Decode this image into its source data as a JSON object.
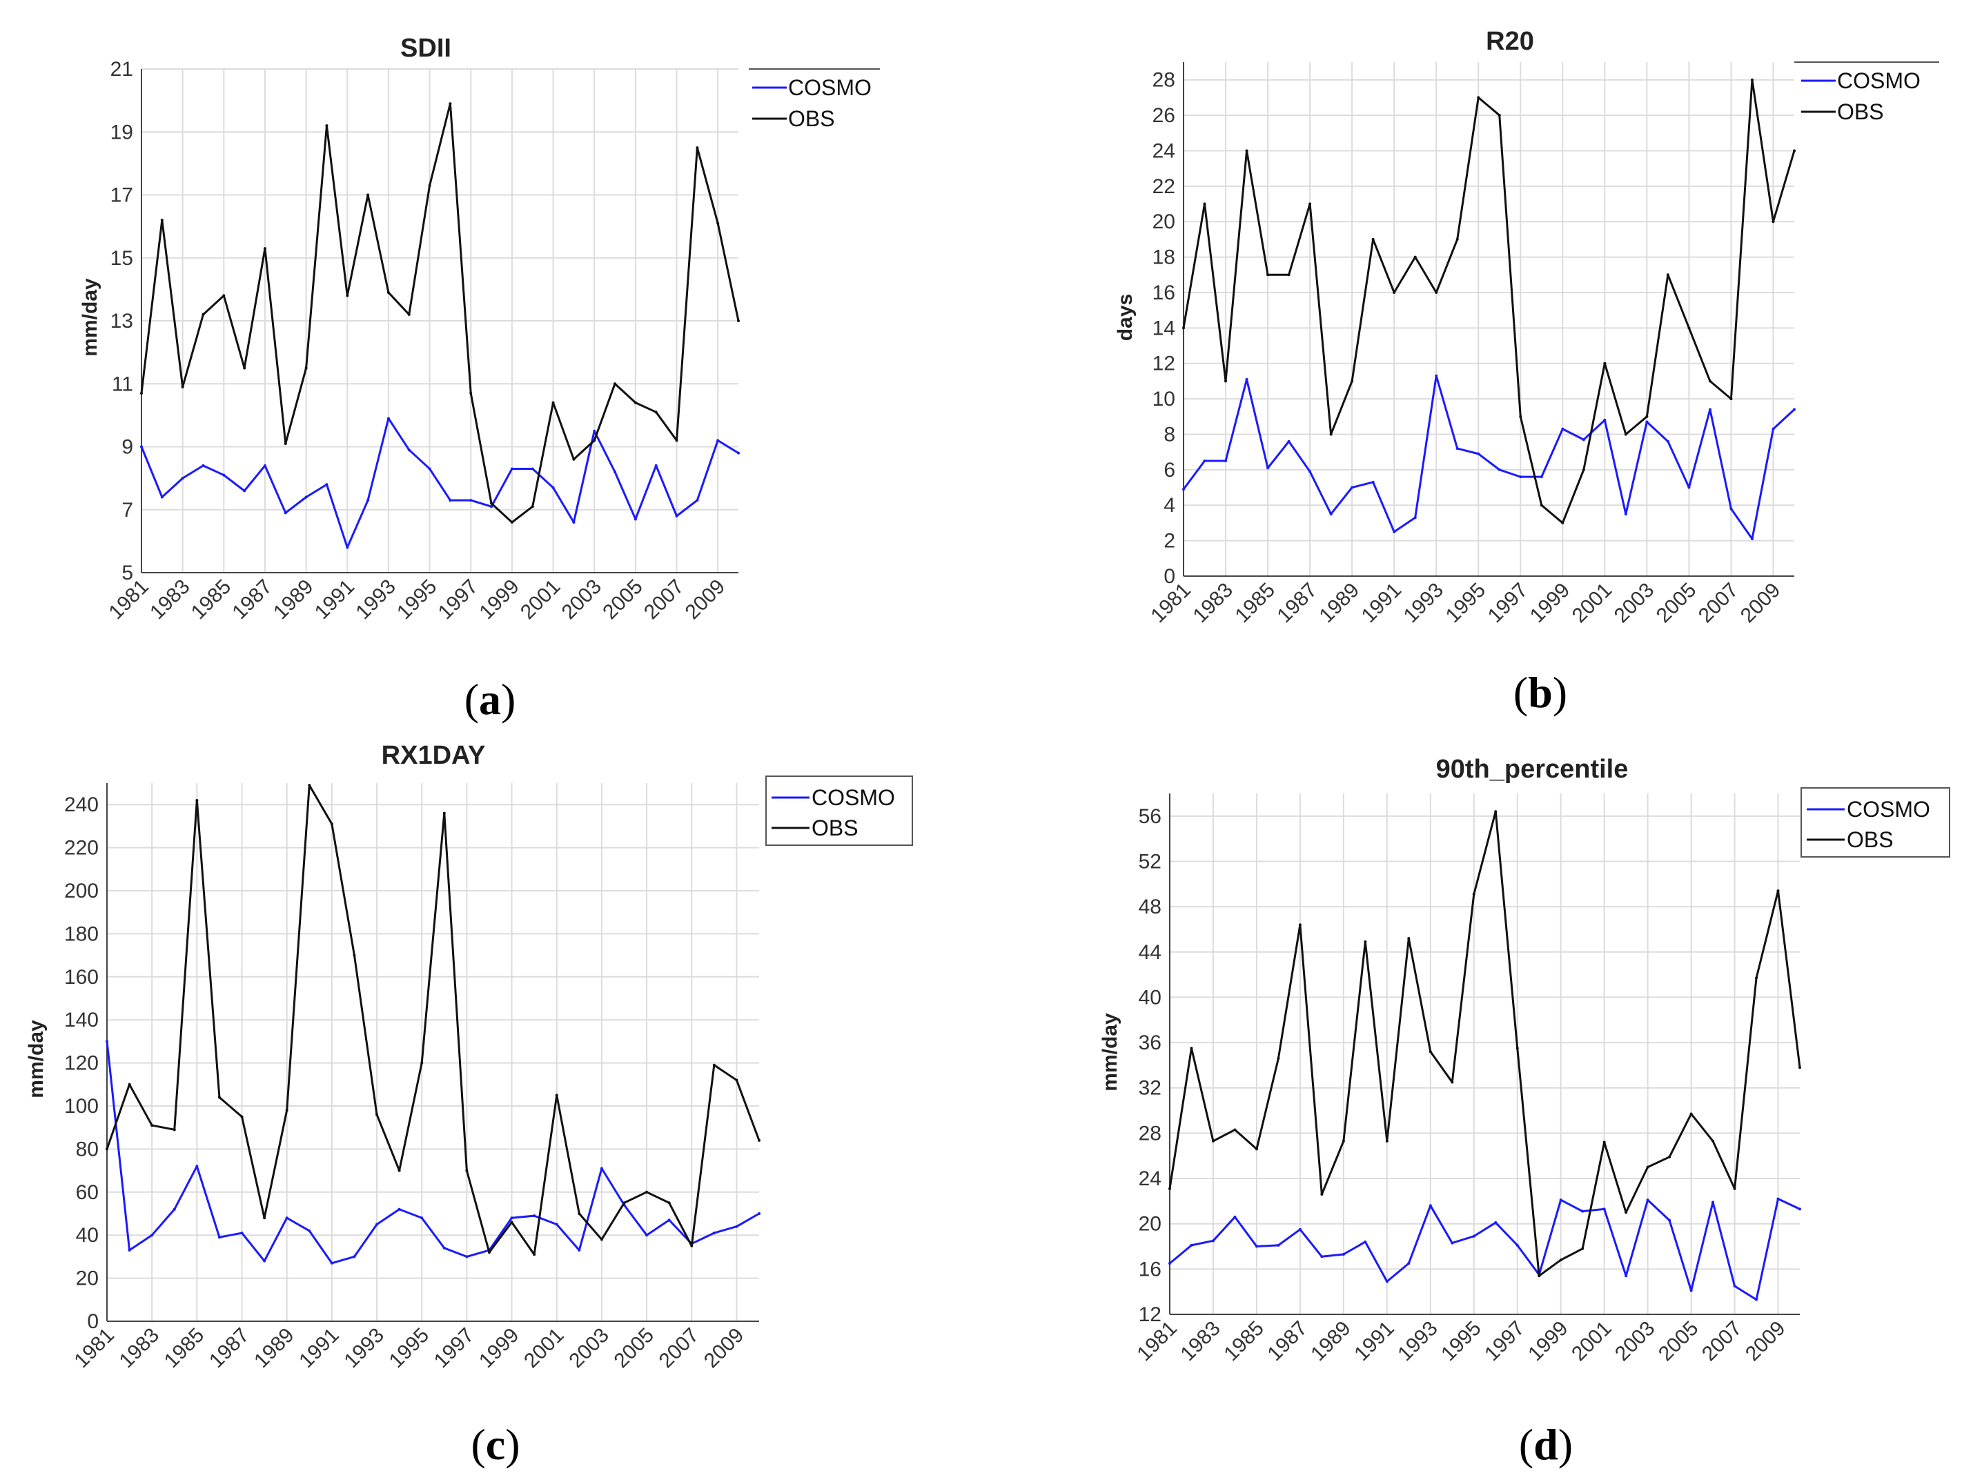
{
  "chart_data": [
    {
      "type": "line",
      "title": "SDII",
      "ylabel": "mm/day",
      "xlabel": "",
      "panel_label": "a",
      "ylim": [
        5,
        21
      ],
      "yticks": [
        5,
        7,
        9,
        11,
        13,
        15,
        17,
        19,
        21
      ],
      "x": [
        1981,
        1982,
        1983,
        1984,
        1985,
        1986,
        1987,
        1988,
        1989,
        1990,
        1991,
        1992,
        1993,
        1994,
        1995,
        1996,
        1997,
        1998,
        1999,
        2000,
        2001,
        2002,
        2003,
        2004,
        2005,
        2006,
        2007,
        2008,
        2009,
        2010
      ],
      "xticks": [
        1981,
        1983,
        1985,
        1987,
        1989,
        1991,
        1993,
        1995,
        1997,
        1999,
        2001,
        2003,
        2005,
        2007,
        2009
      ],
      "legend": "top-right",
      "series": [
        {
          "name": "COSMO",
          "color": "#1a1aff",
          "values": [
            9.0,
            7.4,
            8.0,
            8.4,
            8.1,
            7.6,
            8.4,
            6.9,
            7.4,
            7.8,
            5.8,
            7.3,
            9.9,
            8.9,
            8.3,
            7.3,
            7.3,
            7.1,
            8.3,
            8.3,
            7.7,
            6.6,
            9.5,
            8.2,
            6.7,
            8.4,
            6.8,
            7.3,
            9.2,
            8.8
          ]
        },
        {
          "name": "OBS",
          "color": "#111111",
          "values": [
            10.7,
            16.2,
            10.9,
            13.2,
            13.8,
            11.5,
            15.3,
            9.1,
            11.5,
            19.2,
            13.8,
            17.0,
            13.9,
            13.2,
            17.3,
            19.9,
            10.7,
            7.2,
            6.6,
            7.1,
            10.4,
            8.6,
            9.2,
            11.0,
            10.4,
            10.1,
            9.2,
            18.5,
            16.1,
            13.0
          ]
        }
      ]
    },
    {
      "type": "line",
      "title": "R20",
      "ylabel": "days",
      "xlabel": "",
      "panel_label": "b",
      "ylim": [
        0,
        29
      ],
      "yticks": [
        0,
        2,
        4,
        6,
        8,
        10,
        12,
        14,
        16,
        18,
        20,
        22,
        24,
        26,
        28
      ],
      "x": [
        1981,
        1982,
        1983,
        1984,
        1985,
        1986,
        1987,
        1988,
        1989,
        1990,
        1991,
        1992,
        1993,
        1994,
        1995,
        1996,
        1997,
        1998,
        1999,
        2000,
        2001,
        2002,
        2003,
        2004,
        2005,
        2006,
        2007,
        2008,
        2009,
        2010
      ],
      "xticks": [
        1981,
        1983,
        1985,
        1987,
        1989,
        1991,
        1993,
        1995,
        1997,
        1999,
        2001,
        2003,
        2005,
        2007,
        2009
      ],
      "legend": "top-right",
      "series": [
        {
          "name": "COSMO",
          "color": "#1a1aff",
          "values": [
            4.9,
            6.5,
            6.5,
            11.1,
            6.1,
            7.6,
            5.9,
            3.5,
            5.0,
            5.3,
            2.5,
            3.3,
            11.3,
            7.2,
            6.9,
            6.0,
            5.6,
            5.6,
            8.3,
            7.7,
            8.8,
            3.5,
            8.7,
            7.6,
            5.0,
            9.4,
            3.8,
            2.1,
            8.3,
            9.4
          ]
        },
        {
          "name": "OBS",
          "color": "#111111",
          "values": [
            14.0,
            21.0,
            11.0,
            24.0,
            17.0,
            17.0,
            21.0,
            8.0,
            11.0,
            19.0,
            16.0,
            18.0,
            16.0,
            19.0,
            27.0,
            26.0,
            9.0,
            4.0,
            3.0,
            6.0,
            12.0,
            8.0,
            9.0,
            17.0,
            14.0,
            11.0,
            10.0,
            28.0,
            20.0,
            24.0
          ]
        }
      ]
    },
    {
      "type": "line",
      "title": "RX1DAY",
      "ylabel": "mm/day",
      "xlabel": "",
      "panel_label": "c",
      "ylim": [
        0,
        250
      ],
      "yticks": [
        0,
        20,
        40,
        60,
        80,
        100,
        120,
        140,
        160,
        180,
        200,
        220,
        240
      ],
      "x": [
        1981,
        1982,
        1983,
        1984,
        1985,
        1986,
        1987,
        1988,
        1989,
        1990,
        1991,
        1992,
        1993,
        1994,
        1995,
        1996,
        1997,
        1998,
        1999,
        2000,
        2001,
        2002,
        2003,
        2004,
        2005,
        2006,
        2007,
        2008,
        2009,
        2010
      ],
      "xticks": [
        1981,
        1983,
        1985,
        1987,
        1989,
        1991,
        1993,
        1995,
        1997,
        1999,
        2001,
        2003,
        2005,
        2007,
        2009
      ],
      "legend": "top-right",
      "series": [
        {
          "name": "COSMO",
          "color": "#1a1aff",
          "values": [
            130,
            33,
            40,
            52,
            72,
            39,
            41,
            28,
            48,
            42,
            27,
            30,
            45,
            52,
            48,
            34,
            30,
            33,
            48,
            49,
            45,
            33,
            71,
            54,
            40,
            47,
            36,
            41,
            44,
            50
          ]
        },
        {
          "name": "OBS",
          "color": "#111111",
          "values": [
            80,
            110,
            91,
            89,
            242,
            104,
            95,
            48,
            98,
            249,
            231,
            170,
            96,
            70,
            120,
            236,
            70,
            32,
            46,
            31,
            105,
            50,
            38,
            55,
            60,
            55,
            35,
            119,
            112,
            84
          ]
        }
      ]
    },
    {
      "type": "line",
      "title": "90th_percentile",
      "ylabel": "mm/day",
      "xlabel": "",
      "panel_label": "d",
      "ylim": [
        12,
        58
      ],
      "yticks": [
        12,
        16,
        20,
        24,
        28,
        32,
        36,
        40,
        44,
        48,
        52,
        56
      ],
      "x": [
        1981,
        1982,
        1983,
        1984,
        1985,
        1986,
        1987,
        1988,
        1989,
        1990,
        1991,
        1992,
        1993,
        1994,
        1995,
        1996,
        1997,
        1998,
        1999,
        2000,
        2001,
        2002,
        2003,
        2004,
        2005,
        2006,
        2007,
        2008,
        2009,
        2010
      ],
      "xticks": [
        1981,
        1983,
        1985,
        1987,
        1989,
        1991,
        1993,
        1995,
        1997,
        1999,
        2001,
        2003,
        2005,
        2007,
        2009
      ],
      "legend": "top-right",
      "series": [
        {
          "name": "COSMO",
          "color": "#1a1aff",
          "values": [
            16.5,
            18.1,
            18.5,
            20.6,
            18.0,
            18.1,
            19.5,
            17.1,
            17.3,
            18.4,
            14.9,
            16.5,
            21.6,
            18.3,
            18.9,
            20.1,
            18.1,
            15.5,
            22.1,
            21.1,
            21.3,
            15.4,
            22.1,
            20.3,
            14.1,
            21.9,
            14.5,
            13.3,
            22.2,
            21.3
          ]
        },
        {
          "name": "OBS",
          "color": "#111111",
          "values": [
            23.1,
            35.5,
            27.3,
            28.3,
            26.6,
            34.6,
            46.4,
            22.6,
            27.3,
            44.9,
            27.3,
            45.2,
            35.2,
            32.5,
            49.1,
            56.4,
            35.5,
            15.4,
            16.8,
            17.8,
            27.2,
            21.0,
            25.0,
            25.9,
            29.7,
            27.3,
            23.1,
            41.7,
            49.4,
            33.8
          ]
        }
      ]
    }
  ]
}
